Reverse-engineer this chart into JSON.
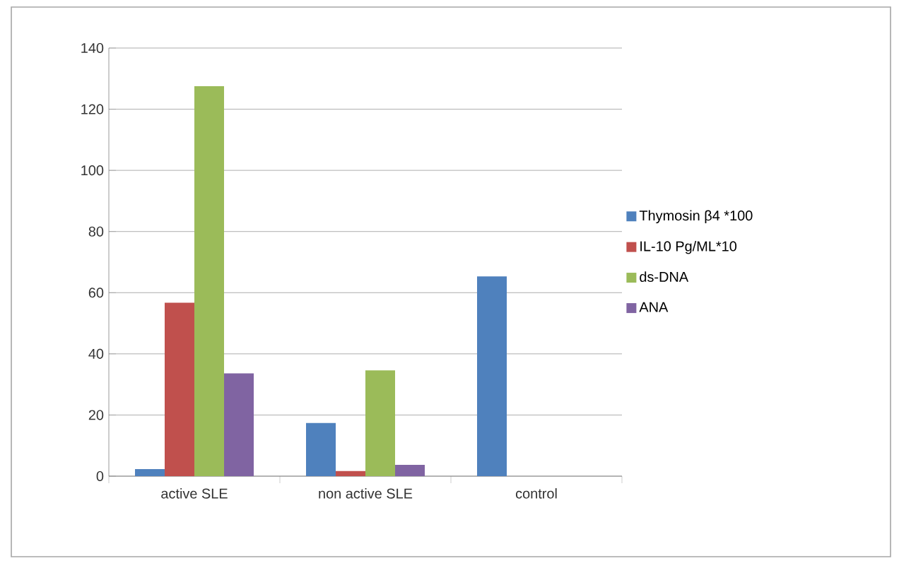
{
  "chart_data": {
    "type": "bar",
    "categories": [
      "active SLE",
      "non active SLE",
      "control"
    ],
    "series": [
      {
        "name": "Thymosin β4 *100",
        "color": "#4f81bd",
        "values": [
          2.3,
          17.4,
          65.3
        ]
      },
      {
        "name": "IL-10 Pg/ML*10",
        "color": "#c0504d",
        "values": [
          56.7,
          1.7,
          0
        ]
      },
      {
        "name": "ds-DNA",
        "color": "#9bbb59",
        "values": [
          127.5,
          34.6,
          0
        ]
      },
      {
        "name": "ANA",
        "color": "#8064a2",
        "values": [
          33.6,
          3.7,
          0
        ]
      }
    ],
    "ylim": [
      0,
      140
    ],
    "yticks": [
      0,
      20,
      40,
      60,
      80,
      100,
      120,
      140
    ],
    "grid": "y",
    "legend": "right"
  }
}
